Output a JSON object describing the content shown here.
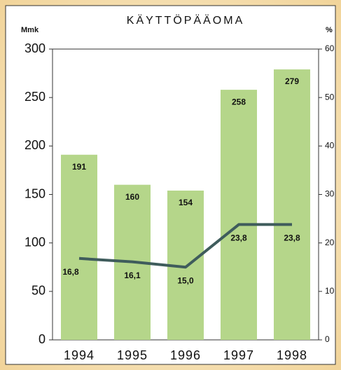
{
  "chart_data": {
    "type": "bar_line",
    "title": "KÄYTTÖPÄÄOMA",
    "y_label": "Mmk",
    "y2_label": "%",
    "categories": [
      "1994",
      "1995",
      "1996",
      "1997",
      "1998"
    ],
    "series": [
      {
        "type": "bar",
        "color": "#b5d68a",
        "values": [
          191,
          160,
          154,
          258,
          279
        ]
      },
      {
        "type": "line",
        "axis": "y2",
        "color": "#3f5c5c",
        "values": [
          16.8,
          16.1,
          15.0,
          23.8,
          23.8
        ],
        "value_labels": [
          "16,8",
          "16,1",
          "15,0",
          "23,8",
          "23,8"
        ]
      }
    ],
    "ylim": [
      0,
      300
    ],
    "yticks": [
      0,
      50,
      100,
      150,
      200,
      250,
      300
    ],
    "y2lim": [
      0,
      60
    ],
    "y2ticks": [
      0,
      10,
      20,
      30,
      40,
      50,
      60
    ]
  }
}
